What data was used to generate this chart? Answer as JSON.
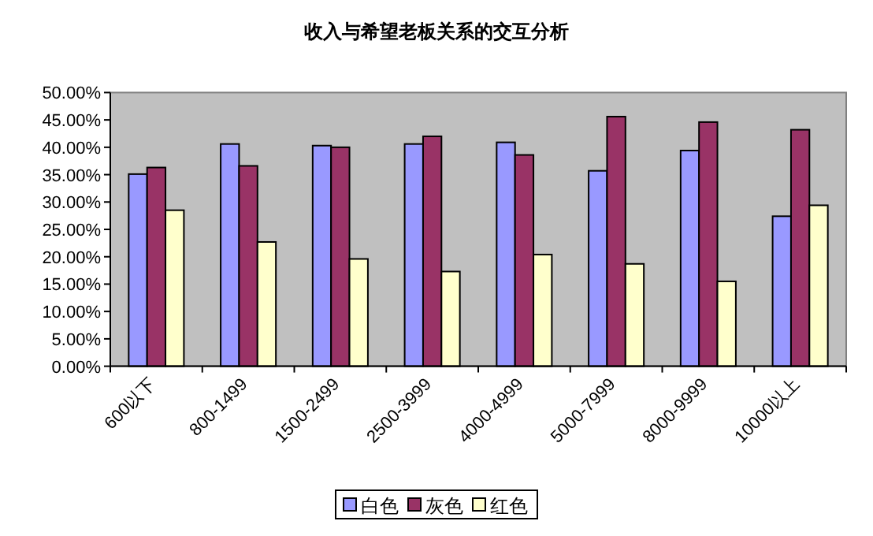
{
  "chart_data": {
    "type": "bar",
    "title": "收入与希望老板关系的交互分析",
    "categories": [
      "600以下",
      "800-1499",
      "1500-2499",
      "2500-3999",
      "4000-4999",
      "5000-7999",
      "8000-9999",
      "10000以上"
    ],
    "series": [
      {
        "name": "白色",
        "color": "#9999ff",
        "values": [
          35.1,
          40.6,
          40.3,
          40.6,
          40.9,
          35.7,
          39.4,
          27.4
        ]
      },
      {
        "name": "灰色",
        "color": "#993366",
        "values": [
          36.3,
          36.6,
          40.0,
          42.0,
          38.6,
          45.6,
          44.6,
          43.2
        ]
      },
      {
        "name": "红色",
        "color": "#ffffcc",
        "values": [
          28.5,
          22.7,
          19.6,
          17.3,
          20.4,
          18.7,
          15.5,
          29.4
        ]
      }
    ],
    "ylim": [
      0,
      50
    ],
    "yticks": [
      {
        "value": 0,
        "label": "0.00%"
      },
      {
        "value": 5,
        "label": "5.00%"
      },
      {
        "value": 10,
        "label": "10.00%"
      },
      {
        "value": 15,
        "label": "15.00%"
      },
      {
        "value": 20,
        "label": "20.00%"
      },
      {
        "value": 25,
        "label": "25.00%"
      },
      {
        "value": 30,
        "label": "30.00%"
      },
      {
        "value": 35,
        "label": "35.00%"
      },
      {
        "value": 40,
        "label": "40.00%"
      },
      {
        "value": 45,
        "label": "45.00%"
      },
      {
        "value": 50,
        "label": "50.00%"
      }
    ],
    "grid": false,
    "legend": "bottom"
  }
}
